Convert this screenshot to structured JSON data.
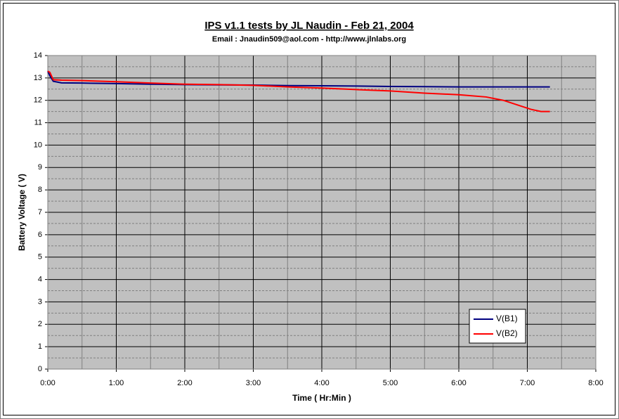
{
  "chart_data": {
    "type": "line",
    "title": "IPS v1.1 tests by JL Naudin - Feb 21, 2004",
    "subtitle": "Email : Jnaudin509@aol.com - http://www.jlnlabs.org",
    "x_label": "Time  ( Hr:Min )",
    "y_label": "Battery Voltage ( V)",
    "x": [
      0,
      0.03,
      0.08,
      0.2,
      0.5,
      1,
      1.5,
      2,
      2.5,
      3,
      3.5,
      4,
      4.5,
      5,
      5.5,
      6,
      6.4,
      6.65,
      6.85,
      7.05,
      7.2,
      7.33
    ],
    "series": [
      {
        "name": "V(B1)",
        "color": "#000080",
        "values": [
          13.3,
          13.1,
          12.85,
          12.78,
          12.77,
          12.75,
          12.72,
          12.7,
          12.69,
          12.68,
          12.66,
          12.65,
          12.64,
          12.62,
          12.61,
          12.6,
          12.6,
          12.6,
          12.6,
          12.6,
          12.6,
          12.6
        ]
      },
      {
        "name": "V(B2)",
        "color": "#ff0000",
        "values": [
          13.3,
          13.25,
          12.92,
          12.9,
          12.88,
          12.83,
          12.77,
          12.72,
          12.7,
          12.67,
          12.6,
          12.55,
          12.48,
          12.42,
          12.32,
          12.25,
          12.15,
          12.0,
          11.8,
          11.6,
          11.5,
          11.5
        ]
      }
    ],
    "xlim": [
      0,
      8
    ],
    "xticks": [
      {
        "value": 0,
        "label": "0:00"
      },
      {
        "value": 1,
        "label": "1:00"
      },
      {
        "value": 2,
        "label": "2:00"
      },
      {
        "value": 3,
        "label": "3:00"
      },
      {
        "value": 4,
        "label": "4:00"
      },
      {
        "value": 5,
        "label": "5:00"
      },
      {
        "value": 6,
        "label": "6:00"
      },
      {
        "value": 7,
        "label": "7:00"
      },
      {
        "value": 8,
        "label": "8:00"
      }
    ],
    "ylim": [
      0,
      14
    ],
    "yticks": [
      0,
      1,
      2,
      3,
      4,
      5,
      6,
      7,
      8,
      9,
      10,
      11,
      12,
      13,
      14
    ],
    "grid": true,
    "minor_grid": true,
    "legend": "lower right"
  }
}
